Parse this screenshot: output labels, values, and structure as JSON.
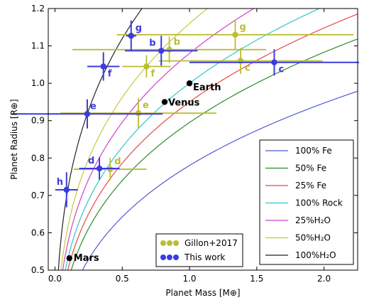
{
  "chart_data": {
    "type": "scatter",
    "xlabel": "Planet Mass [M⊕]",
    "ylabel": "Planet Radius [R⊕]",
    "xlim": [
      -0.05,
      2.25
    ],
    "ylim": [
      0.5,
      1.2
    ],
    "xticks": [
      0.0,
      0.5,
      1.0,
      1.5,
      2.0
    ],
    "xtick_labels": [
      "0.0",
      "0.5",
      "1.0",
      "1.5",
      "2.0"
    ],
    "yticks": [
      0.5,
      0.6,
      0.7,
      0.8,
      0.9,
      1.0,
      1.1,
      1.2
    ],
    "ytick_labels": [
      "0.5",
      "0.6",
      "0.7",
      "0.8",
      "0.9",
      "1.0",
      "1.1",
      "1.2"
    ],
    "grid": false,
    "legend_position": "bottom-right",
    "composition_curves": [
      {
        "name": "100% Fe",
        "color": "#4b5bd6",
        "R1": 0.78,
        "exp": 0.28
      },
      {
        "name": "50% Fe",
        "color": "#2e8b2e",
        "R1": 0.895,
        "exp": 0.275
      },
      {
        "name": "25% Fe",
        "color": "#e84848",
        "R1": 0.95,
        "exp": 0.273
      },
      {
        "name": "100% Rock",
        "color": "#33c6c6",
        "R1": 1.0,
        "exp": 0.27
      },
      {
        "name": "25%H₂O",
        "color": "#cc44cc",
        "R1": 1.08,
        "exp": 0.27
      },
      {
        "name": "50%H₂O",
        "color": "#c8c83c",
        "R1": 1.16,
        "exp": 0.27
      },
      {
        "name": "100%H₂O",
        "color": "#222222",
        "R1": 1.35,
        "exp": 0.27
      }
    ],
    "series": [
      {
        "name": "Gillon+2017",
        "color": "#bdbd30",
        "points": [
          {
            "label": "b",
            "x": 0.85,
            "xerr": 0.72,
            "y": 1.09,
            "yerr": 0.035
          },
          {
            "label": "c",
            "x": 1.38,
            "xerr": 0.61,
            "y": 1.06,
            "yerr": 0.035
          },
          {
            "label": "d",
            "x": 0.41,
            "xerr": 0.27,
            "y": 0.77,
            "yerr": 0.03
          },
          {
            "label": "e",
            "x": 0.62,
            "xerr": 0.58,
            "y": 0.92,
            "yerr": 0.04
          },
          {
            "label": "f",
            "x": 0.68,
            "xerr": 0.18,
            "y": 1.045,
            "yerr": 0.03
          },
          {
            "label": "g",
            "x": 1.34,
            "xerr": 0.88,
            "y": 1.13,
            "yerr": 0.04
          }
        ]
      },
      {
        "name": "This work",
        "color": "#3b3be0",
        "points": [
          {
            "label": "b",
            "x": 0.79,
            "xerr": 0.27,
            "y": 1.087,
            "yerr": 0.04
          },
          {
            "label": "c",
            "x": 1.63,
            "xerr": 0.63,
            "y": 1.056,
            "yerr": 0.035
          },
          {
            "label": "d",
            "x": 0.33,
            "xerr": 0.15,
            "y": 0.772,
            "yerr": 0.03
          },
          {
            "label": "e",
            "x": 0.24,
            "xerr": 0.56,
            "y": 0.918,
            "yerr": 0.039
          },
          {
            "label": "f",
            "x": 0.36,
            "xerr": 0.12,
            "y": 1.045,
            "yerr": 0.038
          },
          {
            "label": "g",
            "x": 0.566,
            "xerr": 0.038,
            "y": 1.127,
            "yerr": 0.041
          },
          {
            "label": "h",
            "x": 0.086,
            "xerr": 0.084,
            "y": 0.715,
            "yerr": 0.047
          }
        ]
      }
    ],
    "reference_planets": [
      {
        "label": "Earth",
        "x": 1.0,
        "y": 1.0
      },
      {
        "label": "Venus",
        "x": 0.815,
        "y": 0.95
      },
      {
        "label": "Mars",
        "x": 0.107,
        "y": 0.532
      }
    ]
  }
}
